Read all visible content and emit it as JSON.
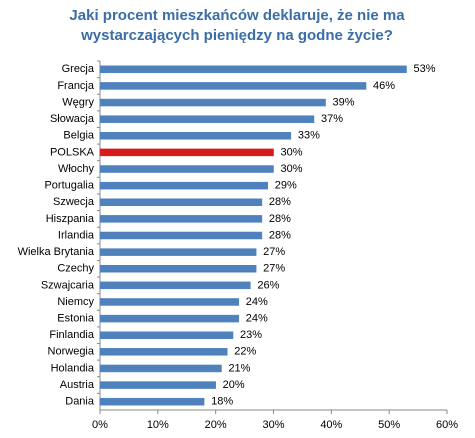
{
  "chart_data": {
    "type": "bar",
    "orientation": "horizontal",
    "title": [
      "Jaki procent mieszkańców deklaruje, że nie ma",
      "wystarczających pieniędzy na godne życie?"
    ],
    "categories": [
      "Grecja",
      "Francja",
      "Węgry",
      "Słowacja",
      "Belgia",
      "POLSKA",
      "Włochy",
      "Portugalia",
      "Szwecja",
      "Hiszpania",
      "Irlandia",
      "Wielka Brytania",
      "Czechy",
      "Szwajcaria",
      "Niemcy",
      "Estonia",
      "Finlandia",
      "Norwegia",
      "Holandia",
      "Austria",
      "Dania"
    ],
    "values": [
      53,
      46,
      39,
      37,
      33,
      30,
      30,
      29,
      28,
      28,
      28,
      27,
      27,
      26,
      24,
      24,
      23,
      22,
      21,
      20,
      18
    ],
    "value_labels": [
      "53%",
      "46%",
      "39%",
      "37%",
      "33%",
      "30%",
      "30%",
      "29%",
      "28%",
      "28%",
      "28%",
      "27%",
      "27%",
      "26%",
      "24%",
      "24%",
      "23%",
      "22%",
      "21%",
      "20%",
      "18%"
    ],
    "colors": [
      "#4f81bd",
      "#4f81bd",
      "#4f81bd",
      "#4f81bd",
      "#4f81bd",
      "#d41a1a",
      "#4f81bd",
      "#4f81bd",
      "#4f81bd",
      "#4f81bd",
      "#4f81bd",
      "#4f81bd",
      "#4f81bd",
      "#4f81bd",
      "#4f81bd",
      "#4f81bd",
      "#4f81bd",
      "#4f81bd",
      "#4f81bd",
      "#4f81bd",
      "#4f81bd"
    ],
    "xlim": [
      0,
      60
    ],
    "xticks": [
      {
        "value": 0,
        "label": "0%"
      },
      {
        "value": 10,
        "label": "10%"
      },
      {
        "value": 20,
        "label": "20%"
      },
      {
        "value": 30,
        "label": "30%"
      },
      {
        "value": 40,
        "label": "40%"
      },
      {
        "value": 50,
        "label": "50%"
      },
      {
        "value": 60,
        "label": "60%"
      }
    ],
    "grid": false
  }
}
